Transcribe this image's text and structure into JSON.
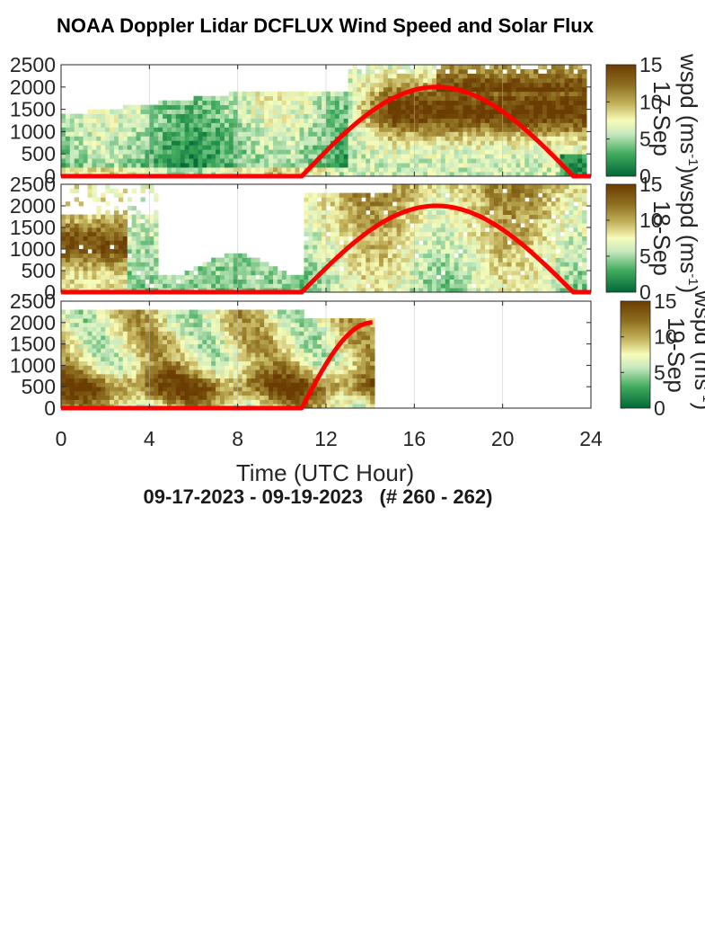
{
  "title": "NOAA Doppler Lidar DCFLUX Wind Speed and Solar Flux",
  "date_range": "09-17-2023 - 09-19-2023   (# 260 - 262)",
  "x_axis": {
    "label": "Time (UTC Hour)",
    "ticks": [
      "0",
      "4",
      "8",
      "12",
      "16",
      "20",
      "24"
    ]
  },
  "colorbar_label": "wspd (ms",
  "colorbar_exp": "-1",
  "colors": {
    "solar_flux": "#ff0000",
    "low_wspd": "#006837",
    "mid_wspd": "#f7fcb9",
    "high_wspd": "#6b3d02"
  },
  "chart_data": [
    {
      "type": "heatmap",
      "panel": "17-Sep",
      "x": [
        0,
        24
      ],
      "y": [
        0,
        2500
      ],
      "yticks": [
        "0",
        "500",
        "1000",
        "1500",
        "2000",
        "2500"
      ],
      "colorbar": {
        "min": 0,
        "max": 15,
        "ticks": [
          "0",
          "5",
          "10",
          "15"
        ]
      },
      "data_end_hour": 23.8,
      "wspd_profile": [
        [
          0,
          5
        ],
        [
          0.5,
          3
        ],
        [
          1,
          3
        ],
        [
          1.5,
          3
        ],
        [
          2,
          4
        ],
        [
          2.5,
          5
        ],
        [
          3,
          5
        ],
        [
          3.5,
          5
        ],
        [
          4,
          6
        ],
        [
          4.5,
          6
        ],
        [
          5,
          6
        ]
      ],
      "solar_flux_line": {
        "x": [
          0,
          10.9,
          17,
          23.2,
          24
        ],
        "y": [
          0,
          0,
          2000,
          0,
          0
        ]
      }
    },
    {
      "type": "heatmap",
      "panel": "18-Sep",
      "x": [
        0,
        24
      ],
      "y": [
        0,
        2500
      ],
      "yticks": [
        "0",
        "500",
        "1000",
        "1500",
        "2000",
        "2500"
      ],
      "colorbar": {
        "min": 0,
        "max": 15,
        "ticks": [
          "0",
          "5",
          "10",
          "15"
        ]
      },
      "data_end_hour": 23.8,
      "solar_flux_line": {
        "x": [
          0,
          10.9,
          17,
          23.2,
          24
        ],
        "y": [
          0,
          0,
          2000,
          0,
          0
        ]
      }
    },
    {
      "type": "heatmap",
      "panel": "19-Sep",
      "x": [
        0,
        24
      ],
      "y": [
        0,
        2500
      ],
      "yticks": [
        "0",
        "500",
        "1000",
        "1500",
        "2000",
        "2500"
      ],
      "colorbar": {
        "min": 0,
        "max": 15,
        "ticks": [
          "0",
          "5",
          "10",
          "15"
        ]
      },
      "data_end_hour": 14.0,
      "solar_flux_line": {
        "x": [
          0,
          10.9,
          14.1
        ],
        "y": [
          0,
          0,
          2000
        ]
      }
    }
  ]
}
